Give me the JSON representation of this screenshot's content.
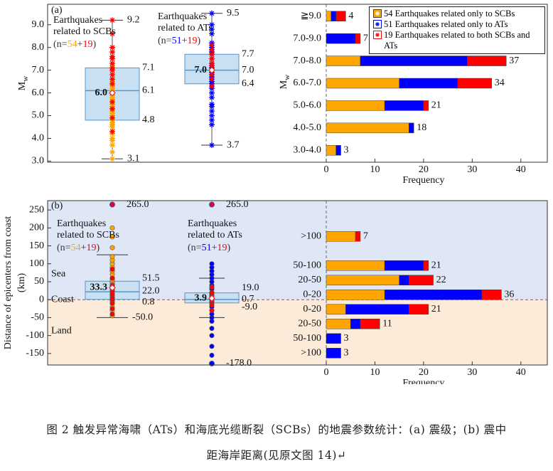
{
  "chart_data": [
    {
      "type": "box",
      "panel_label": "(a)",
      "ylabel": {
        "main": "M",
        "sub": "w"
      },
      "ylim": [
        2.95,
        9.9
      ],
      "yticks": [
        {
          "value": 3,
          "label": "3.0"
        },
        {
          "value": 4,
          "label": "4.0"
        },
        {
          "value": 5,
          "label": "5.0"
        },
        {
          "value": 6,
          "label": "6.0"
        },
        {
          "value": 7,
          "label": "7.0"
        },
        {
          "value": 8,
          "label": "8.0"
        },
        {
          "value": 9,
          "label": "9.0"
        }
      ],
      "marker": "star",
      "box_color": "#c9e0f2",
      "box_edge": "#5a95c8",
      "mean_label_color": "#b5602a",
      "boxes": [
        {
          "annotation": [
            "Earthquakes",
            "related to SCBs"
          ],
          "n_label": [
            "(n=",
            "54",
            "+",
            "19",
            ")"
          ],
          "n_colors": [
            "#333333",
            "#ffa500",
            "#333333",
            "#ff0000",
            "#333333"
          ],
          "whisker_low": 3.1,
          "q1": 4.8,
          "median": 6.1,
          "q3": 7.1,
          "whisker_high": 9.2,
          "mean": 6.0,
          "value_labels": {
            "whisker_low": "3.1",
            "q1": "4.8",
            "median": "6.1",
            "q3": "7.1",
            "whisker_high": "9.2",
            "mean": "6.0"
          },
          "points": [
            {
              "color": "#ffa500",
              "values": [
                3.1,
                3.4,
                3.7,
                3.9,
                4.0,
                4.2,
                4.3,
                4.5,
                4.6,
                4.7,
                4.8,
                5.0,
                5.1,
                5.2,
                5.3,
                5.4,
                5.5,
                5.6,
                5.7,
                5.8,
                5.9,
                6.0,
                6.1,
                6.2,
                6.3,
                6.4,
                6.5,
                6.6,
                6.8,
                7.0,
                7.2
              ]
            },
            {
              "color": "#ff0000",
              "values": [
                4.3,
                4.9,
                5.3,
                5.6,
                6.0,
                6.4,
                6.6,
                6.8,
                7.0,
                7.1,
                7.3,
                7.5,
                7.6,
                7.8,
                8.0,
                8.6,
                9.2
              ]
            }
          ],
          "labeled_points": []
        },
        {
          "annotation": [
            "Earthquakes",
            "related to ATs"
          ],
          "n_label": [
            "(n=",
            "51",
            "+",
            "19",
            ")"
          ],
          "n_colors": [
            "#333333",
            "#0000ff",
            "#333333",
            "#ff0000",
            "#333333"
          ],
          "whisker_low": 3.7,
          "q1": 6.4,
          "median": 7.0,
          "q3": 7.7,
          "whisker_high": 9.5,
          "mean": 7.0,
          "value_labels": {
            "whisker_low": "3.7",
            "q1": "6.4",
            "median": "7.0",
            "q3": "7.7",
            "whisker_high": "9.5",
            "mean": "7.0"
          },
          "points": [
            {
              "color": "#0000ff",
              "values": [
                3.7,
                4.6,
                4.8,
                5.0,
                5.2,
                5.4,
                5.5,
                5.8,
                6.0,
                6.2,
                6.4,
                6.5,
                6.6,
                6.7,
                6.8,
                6.9,
                7.0,
                7.1,
                7.2,
                7.3,
                7.5,
                7.7,
                7.8,
                8.0,
                8.2,
                8.6,
                8.8,
                9.0,
                9.5
              ]
            },
            {
              "color": "#ff0000",
              "values": [
                6.3,
                6.6,
                6.8,
                7.0,
                7.2,
                7.3,
                7.5,
                7.7,
                7.9,
                8.1
              ]
            }
          ],
          "labeled_points": []
        }
      ]
    },
    {
      "type": "barh",
      "ylabel": {
        "main": "M",
        "sub": "w"
      },
      "categories": [
        "≧9.0",
        "7.0-9.0",
        "7.0-8.0",
        "6.0-7.0",
        "5.0-6.0",
        "4.0-5.0",
        "3.0-4.0"
      ],
      "series": [
        {
          "name": "54 Earthquakes related only to SCBs",
          "color": "#ffa500",
          "values": [
            1,
            0,
            7,
            15,
            12,
            17,
            2
          ]
        },
        {
          "name": "51 Earthquakes related only to ATs",
          "color": "#0000ff",
          "values": [
            1,
            6,
            22,
            12,
            8,
            1,
            1
          ]
        },
        {
          "name": "19 Earthquakes related to both SCBs and ATs",
          "color": "#ff0000",
          "values": [
            2,
            1,
            8,
            7,
            1,
            0,
            0
          ]
        }
      ],
      "total_labels": [
        "4",
        "7",
        "37",
        "34",
        "21",
        "18",
        "3"
      ],
      "xlim": [
        0,
        45
      ],
      "xticks": [
        0,
        10,
        20,
        30,
        40
      ],
      "xlabel": "Frequency",
      "legend": "upper right"
    },
    {
      "type": "box",
      "panel_label": "(b)",
      "ylabel": [
        "Distance of epicenters from coast",
        "(km)"
      ],
      "ylim": [
        -182,
        276
      ],
      "yticks": [
        -150,
        -100,
        -50,
        0,
        50,
        100,
        150,
        200,
        250
      ],
      "regions": [
        "Sea",
        "Coast",
        "Land"
      ],
      "marker": "circle",
      "box_color": "#c9e0f2",
      "box_edge": "#5a95c8",
      "mean_label_color": "#b5602a",
      "boxes": [
        {
          "annotation": [
            "Earthquakes",
            "related to SCBs"
          ],
          "n_label": [
            "(n=",
            "54",
            "+",
            "19",
            ")"
          ],
          "n_colors": [
            "#333333",
            "#ffa500",
            "#333333",
            "#ff0000",
            "#333333"
          ],
          "whisker_low": -50.0,
          "q1": 0.8,
          "median": 22.0,
          "q3": 51.5,
          "whisker_high": 125,
          "mean": 33.3,
          "value_labels": {
            "whisker_low": "-50.0",
            "q1": "0.8",
            "median": "22.0",
            "q3": "51.5",
            "mean": "33.3"
          },
          "points": [
            {
              "color": "#ffa500",
              "values": [
                -45,
                -30,
                -20,
                -10,
                -5,
                0,
                2,
                5,
                8,
                10,
                15,
                20,
                25,
                30,
                35,
                40,
                45,
                50,
                55,
                60,
                70,
                80,
                90,
                100,
                110,
                120,
                145,
                175,
                200
              ]
            },
            {
              "color": "#ff0000",
              "values": [
                -40,
                -25,
                -10,
                0,
                5,
                15,
                25,
                40,
                60,
                85
              ]
            }
          ],
          "labeled_points": [
            {
              "value": 265.0,
              "label": "265.0",
              "color": "#ff0000"
            }
          ]
        },
        {
          "annotation": [
            "Earthquakes",
            "related to ATs"
          ],
          "n_label": [
            "(n=",
            "51",
            "+",
            "19",
            ")"
          ],
          "n_colors": [
            "#333333",
            "#0000ff",
            "#333333",
            "#ff0000",
            "#333333"
          ],
          "whisker_low": -50,
          "q1": -9.0,
          "median": 0.7,
          "q3": 19.0,
          "whisker_high": 60,
          "mean": 3.9,
          "value_labels": {
            "q1": "-9.0",
            "median": "0.7",
            "q3": "19.0",
            "mean": "3.9"
          },
          "points": [
            {
              "color": "#0000ff",
              "values": [
                -155,
                -130,
                -100,
                -80,
                -60,
                -50,
                -40,
                -30,
                -20,
                -10,
                -5,
                0,
                5,
                10,
                15,
                20,
                30,
                40,
                50,
                60,
                70,
                80,
                90,
                100
              ]
            },
            {
              "color": "#ff0000",
              "values": [
                -30,
                -15,
                -5,
                0,
                10,
                20,
                35
              ]
            }
          ],
          "labeled_points": [
            {
              "value": 265.0,
              "label": "265.0",
              "color": "#ff0000"
            },
            {
              "value": -178.0,
              "label": "-178.0",
              "color": "#0000ff"
            }
          ]
        }
      ]
    },
    {
      "type": "barh",
      "categories": [
        ">100",
        null,
        "50-100",
        "20-50",
        "0-20",
        "0-20",
        "20-50",
        "50-100",
        ">100"
      ],
      "series": [
        {
          "color": "#ffa500",
          "values": [
            6,
            null,
            12,
            15,
            12,
            4,
            5,
            0,
            0
          ]
        },
        {
          "color": "#0000ff",
          "values": [
            0,
            null,
            8,
            2,
            20,
            13,
            2,
            3,
            3
          ]
        },
        {
          "color": "#ff0000",
          "values": [
            1,
            null,
            1,
            5,
            4,
            4,
            4,
            0,
            0
          ]
        }
      ],
      "total_labels": [
        "7",
        null,
        "21",
        "22",
        "36",
        "21",
        "11",
        "3",
        "3"
      ],
      "xlim": [
        0,
        45
      ],
      "xticks": [
        0,
        10,
        20,
        30,
        40
      ],
      "xlabel": "Frequency"
    }
  ],
  "caption": [
    "图 2 触发异常海啸（ATs）和海底光缆断裂（SCBs）的地震参数统计：(a) 震级；(b) 震中",
    "距海岸距离(见原文图 14)↵"
  ]
}
